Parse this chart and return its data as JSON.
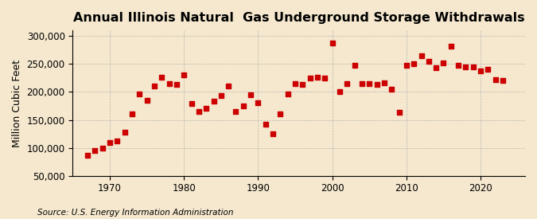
{
  "title": "Annual Illinois Natural  Gas Underground Storage Withdrawals",
  "ylabel": "Million Cubic Feet",
  "source": "Source: U.S. Energy Information Administration",
  "background_color": "#f5e8ce",
  "marker_color": "#cc0000",
  "years": [
    1967,
    1968,
    1969,
    1970,
    1971,
    1972,
    1973,
    1974,
    1975,
    1976,
    1977,
    1978,
    1979,
    1980,
    1981,
    1982,
    1983,
    1984,
    1985,
    1986,
    1987,
    1988,
    1989,
    1990,
    1991,
    1992,
    1993,
    1994,
    1995,
    1996,
    1997,
    1998,
    1999,
    2000,
    2001,
    2002,
    2003,
    2004,
    2005,
    2006,
    2007,
    2008,
    2009,
    2010,
    2011,
    2012,
    2013,
    2014,
    2015,
    2016,
    2017,
    2018,
    2019,
    2020,
    2021,
    2022,
    2023
  ],
  "values": [
    86000,
    95000,
    100000,
    110000,
    113000,
    128000,
    160000,
    197000,
    185000,
    210000,
    226000,
    215000,
    213000,
    230000,
    179000,
    165000,
    170000,
    183000,
    193000,
    210000,
    165000,
    175000,
    195000,
    180000,
    142000,
    125000,
    160000,
    196000,
    215000,
    213000,
    225000,
    226000,
    225000,
    287000,
    200000,
    215000,
    248000,
    215000,
    215000,
    213000,
    216000,
    205000,
    163000,
    248000,
    250000,
    264000,
    255000,
    243000,
    252000,
    281000,
    248000,
    245000,
    245000,
    237000,
    241000,
    222000,
    220000
  ],
  "xlim": [
    1965,
    2026
  ],
  "ylim": [
    50000,
    310000
  ],
  "yticks": [
    50000,
    100000,
    150000,
    200000,
    250000,
    300000
  ],
  "xticks": [
    1970,
    1980,
    1990,
    2000,
    2010,
    2020
  ],
  "grid_color": "#aaaaaa",
  "title_fontsize": 11.5,
  "label_fontsize": 9,
  "tick_fontsize": 8.5,
  "source_fontsize": 7.5
}
